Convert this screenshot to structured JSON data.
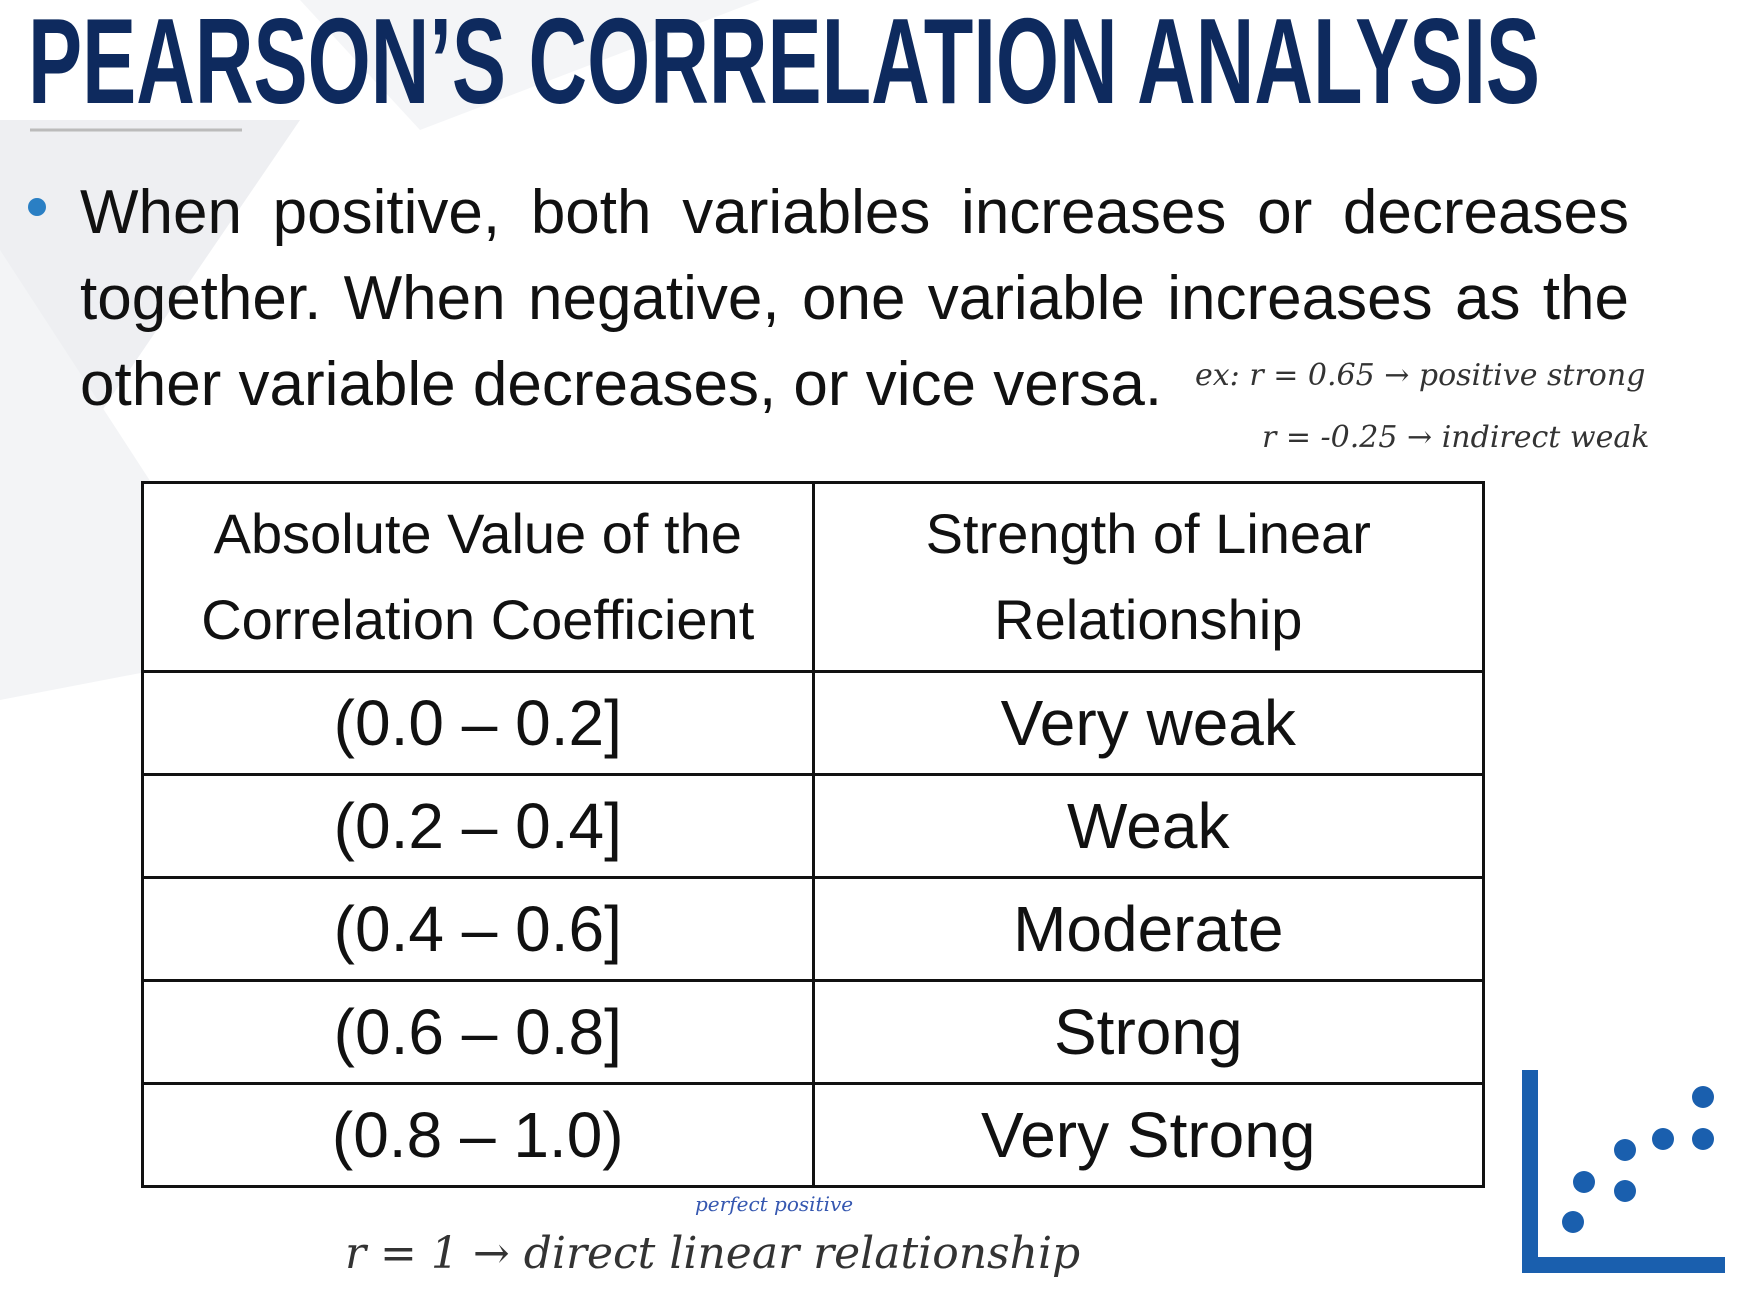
{
  "title": "PEARSON’S CORRELATION ANALYSIS",
  "bullet": "When positive, both variables increases or decreases together. When negative, one variable increases as the other variable decreases, or vice versa.",
  "table": {
    "header": [
      "Absolute Value of the Correlation Coefficient",
      "Strength of Linear Relationship"
    ],
    "rows": [
      [
        "(0.0 – 0.2]",
        "Very weak"
      ],
      [
        "(0.2 – 0.4]",
        "Weak"
      ],
      [
        "(0.4 – 0.6]",
        "Moderate"
      ],
      [
        "(0.6 – 0.8]",
        "Strong"
      ],
      [
        "(0.8 – 1.0)",
        "Very Strong"
      ]
    ]
  },
  "annotations": [
    "ex: r = 0.65 → positive strong",
    "r = -0.25 → indirect weak",
    "perfect positive",
    "r = 1 → direct linear relationship"
  ]
}
